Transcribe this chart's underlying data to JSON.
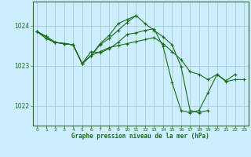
{
  "bg_color": "#cceeff",
  "grid_color": "#aacccc",
  "line_color": "#1a6b1a",
  "marker_color": "#1a6b1a",
  "xlabel": "Graphe pression niveau de la mer (hPa)",
  "xticks": [
    0,
    1,
    2,
    3,
    4,
    5,
    6,
    7,
    8,
    9,
    10,
    11,
    12,
    13,
    14,
    15,
    16,
    17,
    18,
    19,
    20,
    21,
    22,
    23
  ],
  "yticks": [
    1022,
    1023,
    1024
  ],
  "ylim": [
    1021.5,
    1024.6
  ],
  "xlim": [
    -0.5,
    23.5
  ],
  "series": [
    [
      1023.85,
      1023.73,
      1023.58,
      1023.55,
      1023.52,
      1023.05,
      1023.25,
      1023.35,
      1023.45,
      1023.5,
      1023.55,
      1023.6,
      1023.65,
      1023.7,
      1023.55,
      1023.35,
      1023.15,
      1022.85,
      1022.78,
      1022.65,
      1022.78,
      1022.6,
      1022.65,
      1022.65
    ],
    [
      1023.85,
      1023.73,
      1023.58,
      1023.55,
      1023.52,
      1023.05,
      1023.25,
      1023.55,
      1023.75,
      1024.05,
      1024.15,
      1024.25,
      1024.05,
      1023.88,
      1023.72,
      1023.52,
      1022.98,
      1021.88,
      1021.82,
      1021.88,
      null,
      null,
      null,
      null
    ],
    [
      1023.85,
      1023.68,
      1023.58,
      1023.55,
      1023.52,
      1023.05,
      1023.25,
      1023.52,
      1023.68,
      1023.88,
      1024.08,
      1024.25,
      null,
      null,
      null,
      null,
      null,
      null,
      null,
      null,
      null,
      null,
      null,
      null
    ],
    [
      1023.85,
      1023.68,
      1023.58,
      1023.55,
      1023.52,
      1023.05,
      1023.35,
      1023.32,
      1023.42,
      1023.58,
      1023.78,
      1023.82,
      1023.88,
      1023.92,
      1023.48,
      1022.58,
      1021.88,
      1021.82,
      1021.88,
      1022.32,
      1022.78,
      1022.62,
      1022.78,
      null
    ]
  ]
}
